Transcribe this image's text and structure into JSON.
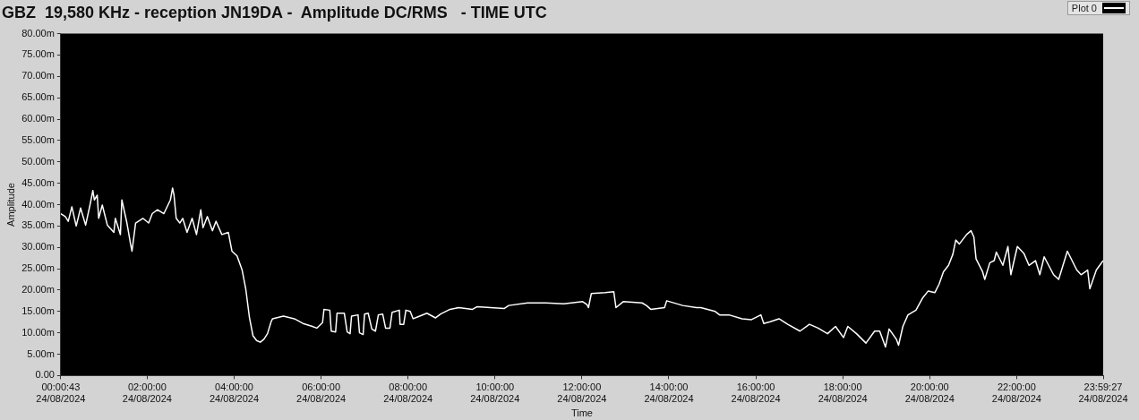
{
  "chart_data": {
    "type": "line",
    "title": "GBZ  19,580 KHz - reception JN19DA -  Amplitude DC/RMS   - TIME UTC",
    "xlabel": "Time",
    "ylabel": "Amplitude",
    "legend": "top right",
    "grid": false,
    "marker": "none",
    "line_style": "solid",
    "xlim": [
      "2024-08-24T00:00:43",
      "2024-08-24T23:59:27"
    ],
    "xticks": [
      {
        "value": "2024-08-24T00:00:43",
        "label": "00:00:43\n24/08/2024"
      },
      {
        "value": "2024-08-24T02:00",
        "label": "02:00:00\n24/08/2024"
      },
      {
        "value": "2024-08-24T04:00",
        "label": "04:00:00\n24/08/2024"
      },
      {
        "value": "2024-08-24T06:00",
        "label": "06:00:00\n24/08/2024"
      },
      {
        "value": "2024-08-24T08:00",
        "label": "08:00:00\n24/08/2024"
      },
      {
        "value": "2024-08-24T10:00",
        "label": "10:00:00\n24/08/2024"
      },
      {
        "value": "2024-08-24T12:00",
        "label": "12:00:00\n24/08/2024"
      },
      {
        "value": "2024-08-24T14:00",
        "label": "14:00:00\n24/08/2024"
      },
      {
        "value": "2024-08-24T16:00",
        "label": "16:00:00\n24/08/2024"
      },
      {
        "value": "2024-08-24T18:00",
        "label": "18:00:00\n24/08/2024"
      },
      {
        "value": "2024-08-24T20:00",
        "label": "20:00:00\n24/08/2024"
      },
      {
        "value": "2024-08-24T22:00",
        "label": "22:00:00\n24/08/2024"
      },
      {
        "value": "2024-08-24T23:59:27",
        "label": "23:59:27\n24/08/2024"
      }
    ],
    "ylim": [
      0,
      80
    ],
    "yticks": [
      {
        "value": 0,
        "label": "0.00"
      },
      {
        "value": 5,
        "label": "5.00m"
      },
      {
        "value": 10,
        "label": "10.00m"
      },
      {
        "value": 15,
        "label": "15.00m"
      },
      {
        "value": 20,
        "label": "20.00m"
      },
      {
        "value": 25,
        "label": "25.00m"
      },
      {
        "value": 30,
        "label": "30.00m"
      },
      {
        "value": 35,
        "label": "35.00m"
      },
      {
        "value": 40,
        "label": "40.00m"
      },
      {
        "value": 45,
        "label": "45.00m"
      },
      {
        "value": 50,
        "label": "50.00m"
      },
      {
        "value": 55,
        "label": "55.00m"
      },
      {
        "value": 60,
        "label": "60.00m"
      },
      {
        "value": 65,
        "label": "65.00m"
      },
      {
        "value": 70,
        "label": "70.00m"
      },
      {
        "value": 75,
        "label": "75.00m"
      },
      {
        "value": 80,
        "label": "80.00m"
      }
    ],
    "series": [
      {
        "name": "Plot 0",
        "color": "#ffffff",
        "x": [
          "2024-08-24T00:00:43",
          "2024-08-24T00:07",
          "2024-08-24T00:11",
          "2024-08-24T00:16",
          "2024-08-24T00:22",
          "2024-08-24T00:28",
          "2024-08-24T00:35",
          "2024-08-24T00:41",
          "2024-08-24T00:45",
          "2024-08-24T00:47",
          "2024-08-24T00:51",
          "2024-08-24T00:53",
          "2024-08-24T00:58",
          "2024-08-24T01:05",
          "2024-08-24T01:14",
          "2024-08-24T01:16",
          "2024-08-24T01:23",
          "2024-08-24T01:25",
          "2024-08-24T01:32",
          "2024-08-24T01:37",
          "2024-08-24T01:39",
          "2024-08-24T01:44",
          "2024-08-24T01:54",
          "2024-08-24T02:02",
          "2024-08-24T02:07",
          "2024-08-24T02:14",
          "2024-08-24T02:23",
          "2024-08-24T02:32",
          "2024-08-24T02:35",
          "2024-08-24T02:37",
          "2024-08-24T02:40",
          "2024-08-24T02:45",
          "2024-08-24T02:49",
          "2024-08-24T02:55",
          "2024-08-24T03:02",
          "2024-08-24T03:08",
          "2024-08-24T03:14",
          "2024-08-24T03:17",
          "2024-08-24T03:23",
          "2024-08-24T03:30",
          "2024-08-24T03:35",
          "2024-08-24T03:43",
          "2024-08-24T03:52",
          "2024-08-24T03:57",
          "2024-08-24T04:04",
          "2024-08-24T04:11",
          "2024-08-24T04:16",
          "2024-08-24T04:21",
          "2024-08-24T04:26",
          "2024-08-24T04:31",
          "2024-08-24T04:36",
          "2024-08-24T04:41",
          "2024-08-24T04:46",
          "2024-08-24T04:51",
          "2024-08-24T04:53",
          "2024-08-24T05:08",
          "2024-08-24T05:23",
          "2024-08-24T05:35",
          "2024-08-24T05:48",
          "2024-08-24T05:54",
          "2024-08-24T06:02",
          "2024-08-24T06:04",
          "2024-08-24T06:12",
          "2024-08-24T06:14",
          "2024-08-24T06:20",
          "2024-08-24T06:22",
          "2024-08-24T06:32",
          "2024-08-24T06:36",
          "2024-08-24T06:40",
          "2024-08-24T06:42",
          "2024-08-24T06:51",
          "2024-08-24T06:53",
          "2024-08-24T06:58",
          "2024-08-24T07:00",
          "2024-08-24T07:05",
          "2024-08-24T07:10",
          "2024-08-24T07:15",
          "2024-08-24T07:19",
          "2024-08-24T07:25",
          "2024-08-24T07:29",
          "2024-08-24T07:35",
          "2024-08-24T07:38",
          "2024-08-24T07:48",
          "2024-08-24T07:49",
          "2024-08-24T07:54",
          "2024-08-24T07:57",
          "2024-08-24T08:03",
          "2024-08-24T08:07",
          "2024-08-24T08:13",
          "2024-08-24T08:26",
          "2024-08-24T08:38",
          "2024-08-24T08:45",
          "2024-08-24T08:58",
          "2024-08-24T09:10",
          "2024-08-24T09:29",
          "2024-08-24T09:35",
          "2024-08-24T09:54",
          "2024-08-24T10:13",
          "2024-08-24T10:19",
          "2024-08-24T10:45",
          "2024-08-24T11:10",
          "2024-08-24T11:35",
          "2024-08-24T12:01",
          "2024-08-24T12:07",
          "2024-08-24T12:09",
          "2024-08-24T12:13",
          "2024-08-24T12:32",
          "2024-08-24T12:44",
          "2024-08-24T12:47",
          "2024-08-24T12:57",
          "2024-08-24T13:23",
          "2024-08-24T13:29",
          "2024-08-24T13:35",
          "2024-08-24T13:54",
          "2024-08-24T13:57",
          "2024-08-24T14:19",
          "2024-08-24T14:38",
          "2024-08-24T14:44",
          "2024-08-24T15:04",
          "2024-08-24T15:10",
          "2024-08-24T15:23",
          "2024-08-24T15:41",
          "2024-08-24T15:54",
          "2024-08-24T16:07",
          "2024-08-24T16:11",
          "2024-08-24T16:20",
          "2024-08-24T16:32",
          "2024-08-24T16:44",
          "2024-08-24T17:01",
          "2024-08-24T17:14",
          "2024-08-24T17:26",
          "2024-08-24T17:39",
          "2024-08-24T17:50",
          "2024-08-24T18:01",
          "2024-08-24T18:07",
          "2024-08-24T18:19",
          "2024-08-24T18:32",
          "2024-08-24T18:44",
          "2024-08-24T18:51",
          "2024-08-24T18:59",
          "2024-08-24T19:04",
          "2024-08-24T19:14",
          "2024-08-24T19:17",
          "2024-08-24T19:23",
          "2024-08-24T19:30",
          "2024-08-24T19:41",
          "2024-08-24T19:50",
          "2024-08-24T19:58",
          "2024-08-24T20:07",
          "2024-08-24T20:13",
          "2024-08-24T20:19",
          "2024-08-24T20:26",
          "2024-08-24T20:32",
          "2024-08-24T20:36",
          "2024-08-24T20:41",
          "2024-08-24T20:51",
          "2024-08-24T20:57",
          "2024-08-24T21:01",
          "2024-08-24T21:04",
          "2024-08-24T21:13",
          "2024-08-24T21:16",
          "2024-08-24T21:23",
          "2024-08-24T21:29",
          "2024-08-24T21:32",
          "2024-08-24T21:41",
          "2024-08-24T21:48",
          "2024-08-24T21:52",
          "2024-08-24T22:01",
          "2024-08-24T22:10",
          "2024-08-24T22:17",
          "2024-08-24T22:26",
          "2024-08-24T22:32",
          "2024-08-24T22:38",
          "2024-08-24T22:51",
          "2024-08-24T22:58",
          "2024-08-24T23:10",
          "2024-08-24T23:23",
          "2024-08-24T23:29",
          "2024-08-24T23:38",
          "2024-08-24T23:41",
          "2024-08-24T23:50",
          "2024-08-24T23:59:27"
        ],
        "values": [
          37.9,
          37.2,
          36.1,
          39.5,
          35.0,
          39.2,
          35.2,
          39.9,
          43.3,
          41.1,
          42.2,
          36.8,
          39.9,
          35.2,
          33.5,
          36.8,
          33.0,
          41.1,
          35.7,
          30.8,
          29.1,
          35.7,
          36.8,
          35.7,
          37.9,
          38.8,
          37.9,
          41.1,
          43.9,
          42.2,
          36.8,
          35.7,
          36.8,
          33.5,
          36.8,
          33.0,
          38.8,
          34.6,
          37.2,
          33.9,
          36.1,
          33.0,
          33.5,
          29.1,
          28.0,
          24.7,
          20.3,
          13.7,
          9.3,
          8.2,
          7.8,
          8.5,
          9.8,
          12.6,
          13.3,
          13.9,
          13.3,
          12.2,
          11.5,
          11.1,
          12.4,
          15.5,
          15.3,
          10.4,
          10.2,
          14.6,
          14.6,
          10.2,
          9.8,
          13.9,
          14.2,
          10.0,
          9.6,
          14.4,
          14.6,
          10.9,
          10.4,
          14.2,
          14.4,
          11.1,
          11.1,
          14.8,
          15.3,
          12.0,
          12.0,
          15.3,
          15.0,
          13.3,
          13.7,
          14.6,
          13.5,
          14.4,
          15.5,
          15.9,
          15.5,
          16.1,
          15.9,
          15.7,
          16.4,
          17.0,
          17.0,
          16.8,
          17.3,
          16.6,
          15.9,
          19.2,
          19.4,
          19.6,
          15.9,
          17.3,
          17.0,
          16.4,
          15.5,
          15.9,
          17.5,
          16.4,
          15.9,
          15.9,
          15.0,
          14.2,
          14.2,
          13.3,
          13.1,
          14.2,
          12.2,
          12.6,
          13.3,
          12.0,
          10.4,
          12.0,
          11.1,
          9.8,
          11.5,
          8.9,
          11.5,
          9.8,
          7.6,
          10.4,
          10.4,
          6.7,
          10.9,
          8.5,
          7.1,
          11.5,
          14.2,
          15.3,
          18.1,
          19.8,
          19.4,
          21.4,
          24.3,
          25.8,
          28.4,
          31.7,
          30.8,
          33.0,
          33.9,
          32.4,
          27.3,
          24.3,
          22.5,
          26.4,
          26.9,
          28.9,
          25.8,
          30.2,
          23.6,
          30.2,
          28.6,
          25.8,
          26.9,
          23.6,
          27.8,
          23.6,
          22.5,
          29.1,
          24.7,
          23.6,
          24.7,
          20.3,
          24.7,
          26.9
        ]
      }
    ]
  }
}
